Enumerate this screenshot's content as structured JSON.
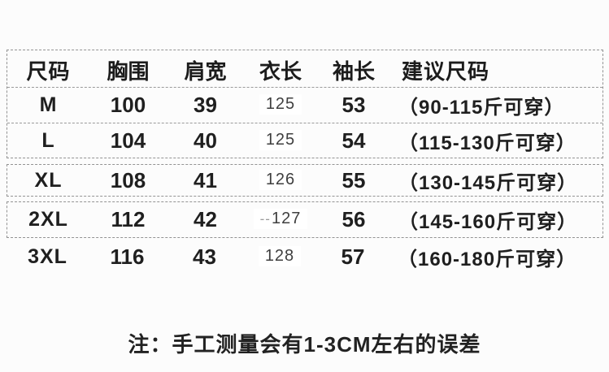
{
  "table": {
    "columns": {
      "size": "尺码",
      "chest": "胸围",
      "shoulder": "肩宽",
      "length": "衣长",
      "sleeve": "袖长",
      "suggest": "建议尺码"
    },
    "rows": [
      {
        "size": "M",
        "chest": "100",
        "shoulder": "39",
        "length": "125",
        "sleeve": "53",
        "suggest": "（90-115斤可穿）"
      },
      {
        "size": "L",
        "chest": "104",
        "shoulder": "40",
        "length": "125",
        "sleeve": "54",
        "suggest": "（115-130斤可穿）"
      },
      {
        "size": "XL",
        "chest": "108",
        "shoulder": "41",
        "length": "126",
        "sleeve": "55",
        "suggest": "（130-145斤可穿）"
      },
      {
        "size": "2XL",
        "chest": "112",
        "shoulder": "42",
        "length": "127",
        "length_prefix": "--",
        "sleeve": "56",
        "suggest": "（145-160斤可穿）"
      },
      {
        "size": "3XL",
        "chest": "116",
        "shoulder": "43",
        "length": "128",
        "sleeve": "57",
        "suggest": "（160-180斤可穿）"
      }
    ]
  },
  "note": {
    "text": "注：手工测量会有1-3CM左右的误差"
  },
  "colors": {
    "background": "#fcfcfc",
    "border_dashed": "#939393",
    "text_primary": "#1f1f1f",
    "text_length_values": "#3f3f3f"
  }
}
